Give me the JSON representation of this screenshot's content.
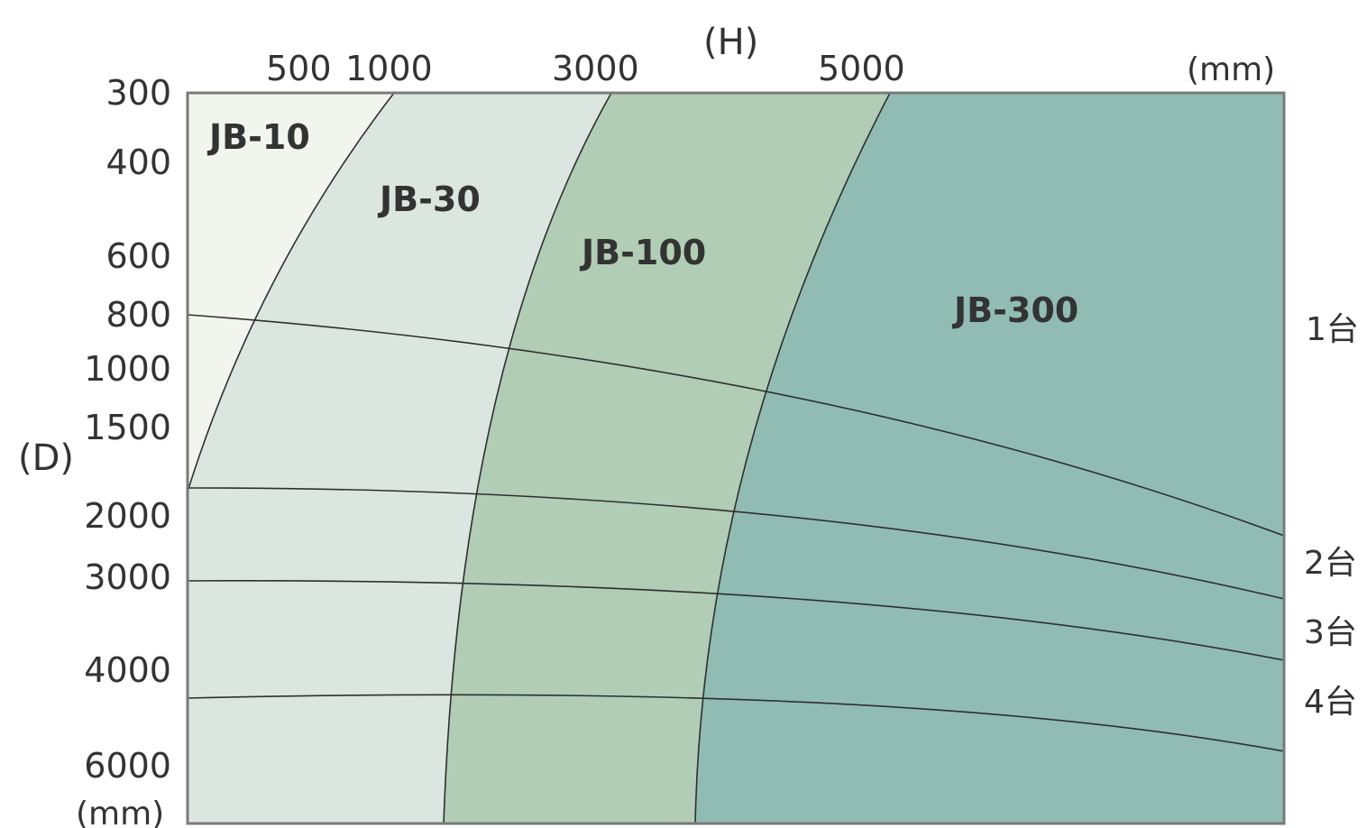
{
  "chart_data": {
    "type": "area",
    "title": "",
    "x_axis": {
      "label": "(H)",
      "unit": "(mm)",
      "ticks": [
        "500",
        "1000",
        "3000",
        "5000"
      ]
    },
    "y_axis": {
      "label": "(D)",
      "unit": "(mm)",
      "ticks": [
        "300",
        "400",
        "600",
        "800",
        "1000",
        "1500",
        "2000",
        "3000",
        "4000",
        "6000"
      ]
    },
    "regions": [
      {
        "name": "JB-10",
        "color": "#f2f5ee"
      },
      {
        "name": "JB-30",
        "color": "#dce6e1"
      },
      {
        "name": "JB-100",
        "color": "#b1cdb5"
      },
      {
        "name": "JB-300",
        "color": "#91bcb3"
      }
    ],
    "unit_counts": [
      "1台",
      "2台",
      "3台",
      "4台"
    ],
    "line_color": "#2f2f2f",
    "border_color": "#7a7a7a"
  }
}
